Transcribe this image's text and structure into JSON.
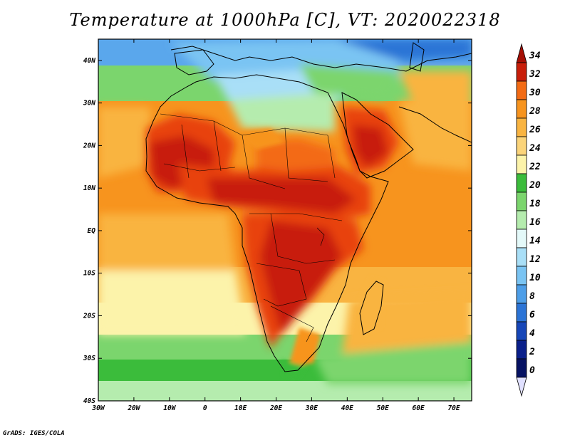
{
  "title": "Temperature at 1000hPa [C], VT: 2020022318",
  "credit": "GrADS: IGES/COLA",
  "map": {
    "projection": "lat-lon",
    "lon_range": [
      -30,
      75
    ],
    "lat_range": [
      -40,
      45
    ],
    "lon_ticks": [
      "30W",
      "20W",
      "10W",
      "0",
      "10E",
      "20E",
      "30E",
      "40E",
      "50E",
      "60E",
      "70E"
    ],
    "lat_ticks": [
      "40N",
      "30N",
      "20N",
      "10N",
      "EQ",
      "10S",
      "20S",
      "30S",
      "40S"
    ],
    "colorbar": {
      "levels": [
        "34",
        "32",
        "30",
        "28",
        "26",
        "24",
        "22",
        "20",
        "18",
        "16",
        "14",
        "12",
        "10",
        "8",
        "6",
        "4",
        "2",
        "0"
      ],
      "colors": [
        "#c81e0a",
        "#e8420f",
        "#f36b14",
        "#f7941e",
        "#f9b441",
        "#fbd47a",
        "#fcf3aa",
        "#3bbc3b",
        "#7bd56d",
        "#b5ecae",
        "#e4f9f9",
        "#a9dff7",
        "#7ac4f3",
        "#4d9ee8",
        "#2b74d6",
        "#1646b8",
        "#0a1f8a",
        "#061263"
      ],
      "top_arrow_color": "#a50f05",
      "bottom_arrow_color": "#e0e0ff"
    },
    "ocean_color": "#f5a33a",
    "land_color_hot": "#d7300f"
  }
}
